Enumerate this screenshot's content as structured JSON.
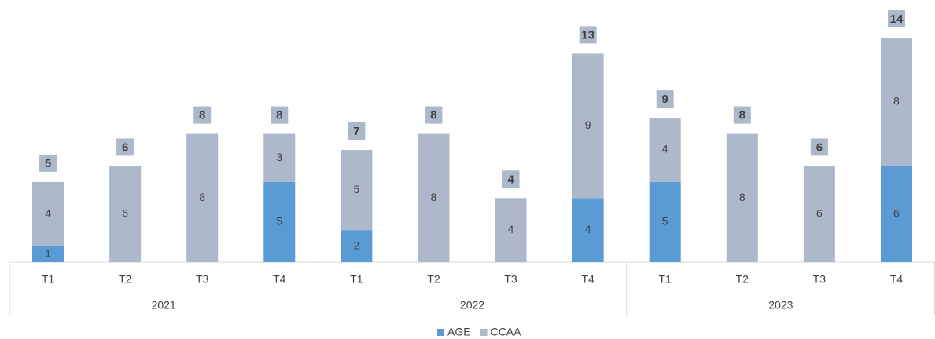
{
  "chart_data": {
    "type": "stacked_bar",
    "categories": [
      "T1",
      "T2",
      "T3",
      "T4",
      "T1",
      "T2",
      "T3",
      "T4",
      "T1",
      "T2",
      "T3",
      "T4"
    ],
    "groups": [
      "2021",
      "2022",
      "2023"
    ],
    "series": [
      {
        "name": "AGE",
        "color": "#5b9bd5",
        "values": [
          1,
          0,
          0,
          5,
          2,
          0,
          0,
          4,
          5,
          0,
          0,
          6
        ]
      },
      {
        "name": "CCAA",
        "color": "#adb9ca",
        "values": [
          4,
          6,
          8,
          3,
          5,
          8,
          4,
          9,
          4,
          8,
          6,
          8
        ]
      }
    ],
    "totals": [
      5,
      6,
      8,
      8,
      7,
      8,
      4,
      13,
      9,
      8,
      6,
      14
    ],
    "ylim": [
      0,
      14
    ],
    "legend": "bottom"
  }
}
